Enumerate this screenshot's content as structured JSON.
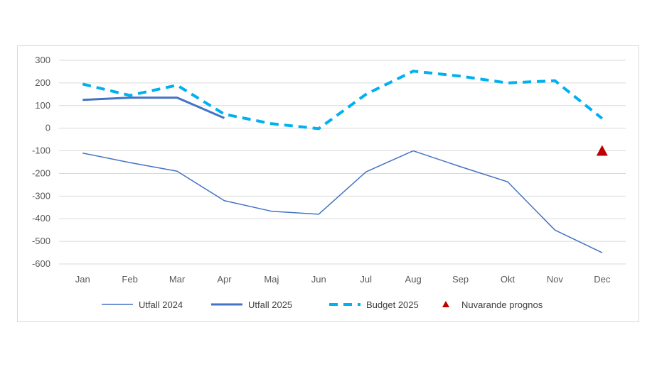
{
  "chart_data": {
    "type": "line",
    "categories": [
      "Jan",
      "Feb",
      "Mar",
      "Apr",
      "Maj",
      "Jun",
      "Jul",
      "Aug",
      "Sep",
      "Okt",
      "Nov",
      "Dec"
    ],
    "ylim": [
      -600,
      300
    ],
    "yticks": [
      300,
      200,
      100,
      0,
      -100,
      -200,
      -300,
      -400,
      -500,
      -600
    ],
    "grid": true,
    "legend_position": "bottom",
    "series": [
      {
        "name": "Utfall 2024",
        "color": "#4472c4",
        "style": "thin-solid",
        "values": [
          -110,
          -152,
          -190,
          -320,
          -367,
          -380,
          -193,
          -100,
          -170,
          -237,
          -450,
          -550
        ]
      },
      {
        "name": "Utfall 2025",
        "color": "#4472c4",
        "style": "thick-solid",
        "values": [
          125,
          135,
          135,
          45,
          null,
          null,
          null,
          null,
          null,
          null,
          null,
          null
        ]
      },
      {
        "name": "Budget 2025",
        "color": "#00b0f0",
        "style": "dashed",
        "values": [
          195,
          145,
          190,
          62,
          20,
          -2,
          150,
          252,
          230,
          200,
          210,
          43
        ]
      },
      {
        "name": "Nuvarande prognos",
        "color": "#c00000",
        "style": "triangle-marker",
        "values": [
          null,
          null,
          null,
          null,
          null,
          null,
          null,
          null,
          null,
          null,
          null,
          -100
        ]
      }
    ]
  }
}
